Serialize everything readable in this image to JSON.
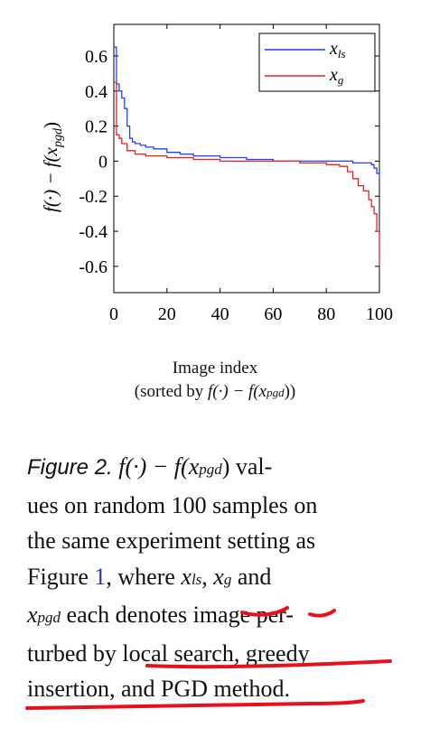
{
  "chart_data": {
    "type": "line",
    "xlabel": "Image index",
    "xlabel_note": "(sorted by f(·) − f(x_pgd))",
    "ylabel": "f(·) − f(x_pgd)",
    "xlim": [
      0,
      100
    ],
    "ylim": [
      -0.75,
      0.78
    ],
    "x_ticks": [
      "0",
      "20",
      "40",
      "60",
      "80",
      "100"
    ],
    "y_ticks": [
      "0.6",
      "0.4",
      "0.2",
      "0",
      "-0.2",
      "-0.4",
      "-0.6"
    ],
    "grid": false,
    "legend_position": "top-right",
    "series": [
      {
        "name": "x_ls",
        "color": "#1f3fff",
        "x": [
          0,
          1,
          2,
          3,
          4,
          5,
          6,
          7,
          8,
          10,
          12,
          15,
          20,
          25,
          30,
          40,
          50,
          60,
          70,
          80,
          85,
          90,
          95,
          97,
          98,
          99,
          100
        ],
        "y": [
          0.65,
          0.44,
          0.4,
          0.36,
          0.3,
          0.2,
          0.13,
          0.11,
          0.1,
          0.09,
          0.08,
          0.07,
          0.05,
          0.04,
          0.03,
          0.02,
          0.01,
          0.0,
          0.0,
          0.0,
          0.0,
          -0.01,
          -0.01,
          -0.02,
          -0.04,
          -0.07,
          -0.1
        ]
      },
      {
        "name": "x_g",
        "color": "#e82020",
        "x": [
          0,
          1,
          2,
          3,
          5,
          8,
          12,
          20,
          30,
          40,
          50,
          60,
          70,
          80,
          85,
          88,
          90,
          92,
          94,
          96,
          97,
          98,
          99,
          100
        ],
        "y": [
          0.45,
          0.15,
          0.13,
          0.1,
          0.06,
          0.04,
          0.03,
          0.02,
          0.01,
          0.0,
          0.0,
          0.0,
          -0.01,
          -0.02,
          -0.03,
          -0.06,
          -0.1,
          -0.14,
          -0.17,
          -0.22,
          -0.26,
          -0.3,
          -0.4,
          -0.6
        ]
      }
    ]
  },
  "legend": {
    "items": [
      {
        "base": "x",
        "sub": "ls",
        "color": "#1f3fff"
      },
      {
        "base": "x",
        "sub": "g",
        "color": "#e82020"
      }
    ]
  },
  "axis_text": {
    "xlabel_line1": "Image index",
    "xlabel_line2_prefix": "(sorted by ",
    "f_dot": "f(·) − f(",
    "x_var": "x",
    "pgd_sub": "pgd",
    "close": "))"
  },
  "caption": {
    "figure_label": "Figure 2.",
    "line1_formula": "f(·) − f(",
    "line1_after": ") val-",
    "line2": "ues on random 100 samples on",
    "line3": "the same experiment setting as",
    "line4_prefix": "Figure ",
    "line4_ref": "1",
    "line4_mid": ", where ",
    "comma": ", ",
    "and": " and",
    "line5_after": " each denotes image per-",
    "line6": "turbed by local search, greedy",
    "line7": "insertion, and PGD method.",
    "x": "x",
    "sub_ls": "ls",
    "sub_g": "g",
    "sub_pgd": "pgd"
  },
  "annotations": {
    "ink_color": "#e8101a"
  }
}
